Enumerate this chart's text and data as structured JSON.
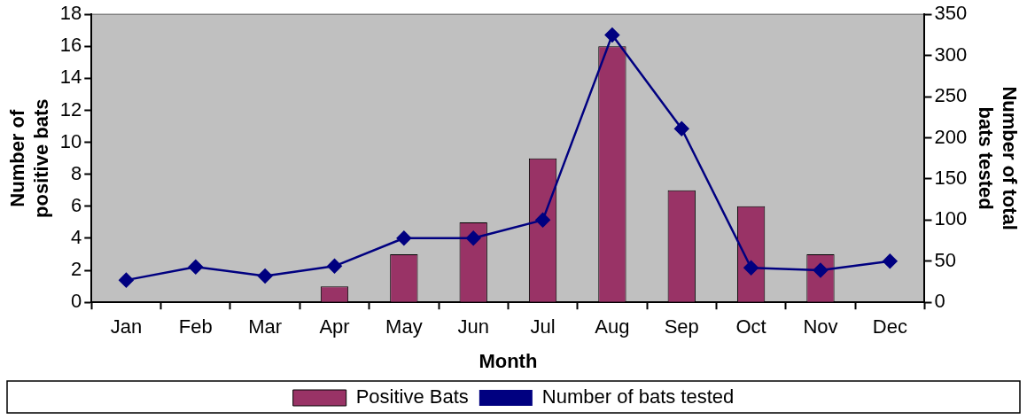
{
  "chart_data": {
    "type": "bar",
    "xlabel": "Month",
    "ylabel": "Number of positive bats",
    "y2label": "Number of total bats tested",
    "categories": [
      "Jan",
      "Feb",
      "Mar",
      "Apr",
      "May",
      "Jun",
      "Jul",
      "Aug",
      "Sep",
      "Oct",
      "Nov",
      "Dec"
    ],
    "series": [
      {
        "name": "Positive Bats",
        "color": "#993366",
        "values": [
          0,
          0,
          0,
          1,
          3,
          5,
          9,
          16,
          7,
          6,
          3,
          0
        ]
      },
      {
        "name": "Number of bats tested",
        "type": "line",
        "axis": "y2",
        "color": "#000080",
        "marker": "diamond",
        "values": [
          27,
          43,
          32,
          44,
          78,
          78,
          100,
          325,
          211,
          42,
          39,
          50
        ]
      }
    ],
    "ylim": [
      0,
      18
    ],
    "yticks": [
      0,
      2,
      4,
      6,
      8,
      10,
      12,
      14,
      16,
      18
    ],
    "y2lim": [
      0,
      350
    ],
    "y2ticks": [
      0,
      50,
      100,
      150,
      200,
      250,
      300,
      350
    ],
    "grid": false,
    "legend": "bottom"
  }
}
